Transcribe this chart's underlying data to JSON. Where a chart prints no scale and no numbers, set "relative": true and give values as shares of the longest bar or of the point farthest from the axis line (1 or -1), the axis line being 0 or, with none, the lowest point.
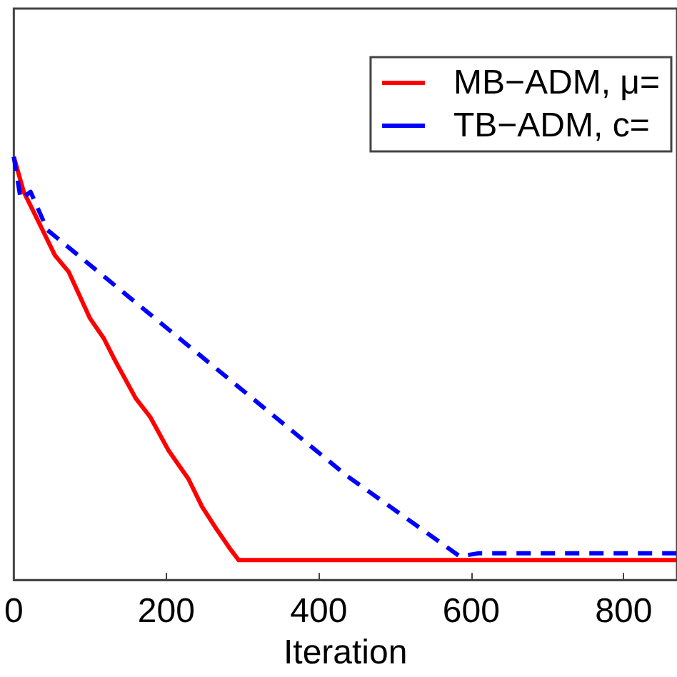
{
  "chart_data": {
    "type": "line",
    "xlabel": "Iteration",
    "relative": true,
    "xlim": [
      0,
      870
    ],
    "xticks": [
      0,
      200,
      400,
      600,
      800
    ],
    "grid": false,
    "legend": "top right",
    "marker": "none",
    "tick_labels": "x",
    "series": [
      {
        "name": "MB−ADM, μ=",
        "color": "#ff0000",
        "line_style": "solid",
        "x": [
          0,
          13,
          35,
          54,
          72,
          100,
          118,
          133,
          160,
          179,
          203,
          229,
          247,
          266,
          284,
          295,
          308,
          869
        ],
        "values": [
          1.0,
          0.917,
          0.837,
          0.767,
          0.728,
          0.618,
          0.571,
          0.518,
          0.429,
          0.385,
          0.306,
          0.239,
          0.173,
          0.12,
          0.073,
          0.047,
          0.047,
          0.047
        ]
      },
      {
        "name": "TB−ADM, c=",
        "color": "#0000ff",
        "line_style": "dashed",
        "x": [
          0,
          9,
          22,
          44,
          437,
          585,
          609,
          869
        ],
        "values": [
          1.0,
          0.9,
          0.917,
          0.827,
          0.246,
          0.056,
          0.063,
          0.063
        ]
      }
    ]
  }
}
